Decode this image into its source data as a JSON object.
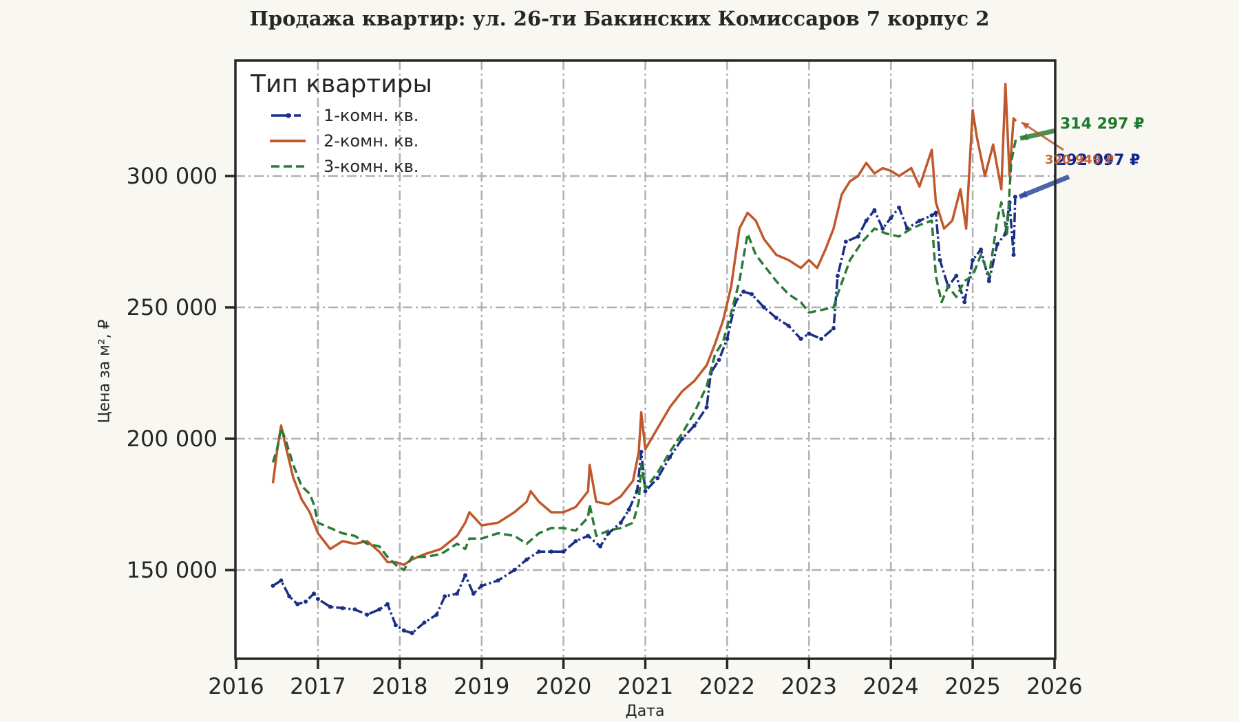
{
  "title": "Продажа квартир: ул. 26-ти Бакинских Комиссаров 7 корпус 2",
  "chart_data": {
    "type": "line",
    "title": "Продажа квартир: ул. 26-ти Бакинских Комиссаров 7 корпус 2",
    "xlabel": "Дата",
    "ylabel": "Цена за м², ₽",
    "xlim": [
      2016,
      2026
    ],
    "ylim": [
      116000,
      345000
    ],
    "x_ticks": [
      "2016",
      "2017",
      "2018",
      "2019",
      "2020",
      "2021",
      "2022",
      "2023",
      "2024",
      "2025",
      "2026"
    ],
    "y_ticks": [
      {
        "value": 150000,
        "label": "150 000"
      },
      {
        "value": 200000,
        "label": "200 000"
      },
      {
        "value": 250000,
        "label": "250 000"
      },
      {
        "value": 300000,
        "label": "300 000"
      }
    ],
    "grid": true,
    "legend": {
      "title": "Тип квартиры",
      "position": "upper left"
    },
    "series": [
      {
        "name": "1-комн. кв.",
        "color": "#1a2f86",
        "style": "dashdot-marker",
        "x": [
          2016.45,
          2016.55,
          2016.65,
          2016.75,
          2016.85,
          2016.95,
          2017.0,
          2017.15,
          2017.3,
          2017.45,
          2017.6,
          2017.75,
          2017.85,
          2017.95,
          2018.05,
          2018.15,
          2018.3,
          2018.45,
          2018.55,
          2018.7,
          2018.8,
          2018.9,
          2019.0,
          2019.2,
          2019.4,
          2019.55,
          2019.7,
          2019.85,
          2020.0,
          2020.15,
          2020.3,
          2020.45,
          2020.55,
          2020.7,
          2020.8,
          2020.9,
          2020.95,
          2021.0,
          2021.15,
          2021.3,
          2021.45,
          2021.6,
          2021.75,
          2021.8,
          2021.9,
          2022.0,
          2022.1,
          2022.2,
          2022.3,
          2022.45,
          2022.6,
          2022.75,
          2022.9,
          2023.0,
          2023.15,
          2023.3,
          2023.35,
          2023.45,
          2023.6,
          2023.7,
          2023.8,
          2023.9,
          2024.0,
          2024.1,
          2024.2,
          2024.35,
          2024.5,
          2024.55,
          2024.6,
          2024.7,
          2024.8,
          2024.9,
          2025.0,
          2025.1,
          2025.2,
          2025.3,
          2025.4,
          2025.45,
          2025.5,
          2025.52
        ],
        "y": [
          144000,
          146000,
          140000,
          137000,
          138000,
          141000,
          139000,
          136000,
          135500,
          135000,
          133000,
          135000,
          137000,
          129000,
          127000,
          126000,
          130000,
          133000,
          140000,
          141000,
          148000,
          141000,
          144000,
          146000,
          150000,
          154000,
          157000,
          157000,
          157000,
          161000,
          163000,
          159000,
          164000,
          168000,
          173000,
          180000,
          195000,
          180000,
          185000,
          193000,
          200000,
          205000,
          212000,
          225000,
          230000,
          238000,
          252000,
          256000,
          255000,
          250000,
          246000,
          243000,
          238000,
          240000,
          238000,
          242000,
          262000,
          275000,
          277000,
          283000,
          287000,
          280000,
          284000,
          288000,
          280000,
          283000,
          285000,
          286000,
          268000,
          258000,
          262000,
          252000,
          268000,
          272000,
          260000,
          274000,
          278000,
          290000,
          270000,
          292097
        ]
      },
      {
        "name": "2-комн. кв.",
        "color": "#c0582c",
        "style": "solid",
        "x": [
          2016.45,
          2016.5,
          2016.55,
          2016.6,
          2016.7,
          2016.8,
          2016.9,
          2016.95,
          2017.0,
          2017.15,
          2017.3,
          2017.45,
          2017.6,
          2017.75,
          2017.85,
          2017.95,
          2018.05,
          2018.15,
          2018.3,
          2018.5,
          2018.7,
          2018.8,
          2018.85,
          2019.0,
          2019.2,
          2019.4,
          2019.55,
          2019.6,
          2019.7,
          2019.85,
          2020.0,
          2020.15,
          2020.3,
          2020.32,
          2020.4,
          2020.55,
          2020.7,
          2020.85,
          2020.92,
          2020.95,
          2021.0,
          2021.15,
          2021.3,
          2021.45,
          2021.6,
          2021.75,
          2021.85,
          2021.95,
          2022.05,
          2022.15,
          2022.25,
          2022.35,
          2022.45,
          2022.6,
          2022.75,
          2022.9,
          2023.0,
          2023.1,
          2023.2,
          2023.3,
          2023.4,
          2023.5,
          2023.6,
          2023.7,
          2023.8,
          2023.9,
          2024.0,
          2024.1,
          2024.25,
          2024.35,
          2024.5,
          2024.55,
          2024.65,
          2024.75,
          2024.85,
          2024.92,
          2025.0,
          2025.05,
          2025.15,
          2025.25,
          2025.35,
          2025.4,
          2025.45,
          2025.5,
          2025.53
        ],
        "y": [
          183000,
          195000,
          205000,
          198000,
          185000,
          177000,
          172000,
          168000,
          164000,
          158000,
          161000,
          160000,
          161000,
          157000,
          153000,
          153000,
          152000,
          154000,
          156000,
          158000,
          163000,
          168000,
          172000,
          167000,
          168000,
          172000,
          176000,
          180000,
          176000,
          172000,
          172000,
          174000,
          180000,
          190000,
          176000,
          175000,
          178000,
          184000,
          195000,
          210000,
          196000,
          204000,
          212000,
          218000,
          222000,
          228000,
          236000,
          245000,
          258000,
          280000,
          286000,
          283000,
          276000,
          270000,
          268000,
          265000,
          268000,
          265000,
          272000,
          280000,
          293000,
          298000,
          300000,
          305000,
          301000,
          303000,
          302000,
          300000,
          303000,
          296000,
          310000,
          290000,
          280000,
          283000,
          295000,
          280000,
          325000,
          315000,
          300000,
          312000,
          295000,
          335000,
          300000,
          322000,
          320949
        ]
      },
      {
        "name": "3-комн. кв.",
        "color": "#2b7a36",
        "style": "dashed",
        "x": [
          2016.45,
          2016.5,
          2016.55,
          2016.6,
          2016.7,
          2016.8,
          2016.9,
          2016.95,
          2017.0,
          2017.15,
          2017.3,
          2017.45,
          2017.6,
          2017.75,
          2017.85,
          2017.95,
          2018.05,
          2018.15,
          2018.3,
          2018.5,
          2018.7,
          2018.8,
          2018.85,
          2019.0,
          2019.2,
          2019.4,
          2019.55,
          2019.7,
          2019.85,
          2020.0,
          2020.15,
          2020.3,
          2020.32,
          2020.4,
          2020.55,
          2020.7,
          2020.85,
          2020.92,
          2020.95,
          2021.0,
          2021.15,
          2021.3,
          2021.45,
          2021.6,
          2021.75,
          2021.85,
          2021.95,
          2022.05,
          2022.15,
          2022.25,
          2022.35,
          2022.45,
          2022.6,
          2022.75,
          2022.9,
          2023.0,
          2023.15,
          2023.3,
          2023.35,
          2023.5,
          2023.65,
          2023.8,
          2023.95,
          2024.1,
          2024.25,
          2024.4,
          2024.5,
          2024.55,
          2024.62,
          2024.7,
          2024.8,
          2024.9,
          2025.0,
          2025.1,
          2025.2,
          2025.3,
          2025.35,
          2025.42,
          2025.47,
          2025.5,
          2025.53
        ],
        "y": [
          191000,
          196000,
          204000,
          200000,
          190000,
          182000,
          179000,
          175000,
          168000,
          166000,
          164000,
          163000,
          160000,
          159000,
          155000,
          152000,
          150000,
          155000,
          155000,
          156000,
          160000,
          158000,
          162000,
          162000,
          164000,
          163000,
          160000,
          164000,
          166000,
          166000,
          165000,
          170000,
          175000,
          163000,
          165000,
          166000,
          168000,
          176000,
          190000,
          181000,
          187000,
          195000,
          202000,
          210000,
          220000,
          232000,
          237000,
          248000,
          260000,
          278000,
          270000,
          266000,
          260000,
          255000,
          252000,
          248000,
          249000,
          250000,
          255000,
          268000,
          275000,
          280000,
          278000,
          277000,
          280000,
          282000,
          283000,
          262000,
          252000,
          258000,
          254000,
          260000,
          262000,
          270000,
          262000,
          283000,
          290000,
          278000,
          305000,
          310000,
          314297
        ]
      }
    ],
    "annotations": [
      {
        "text": "314 297 ₽",
        "series": "3-комн. кв.",
        "color": "#1d7a2a"
      },
      {
        "text": "320 949 ₽",
        "series": "2-комн. кв.",
        "color": "#c0582c"
      },
      {
        "text": "292 097 ₽",
        "series": "1-комн. кв.",
        "color": "#10278a"
      }
    ]
  }
}
